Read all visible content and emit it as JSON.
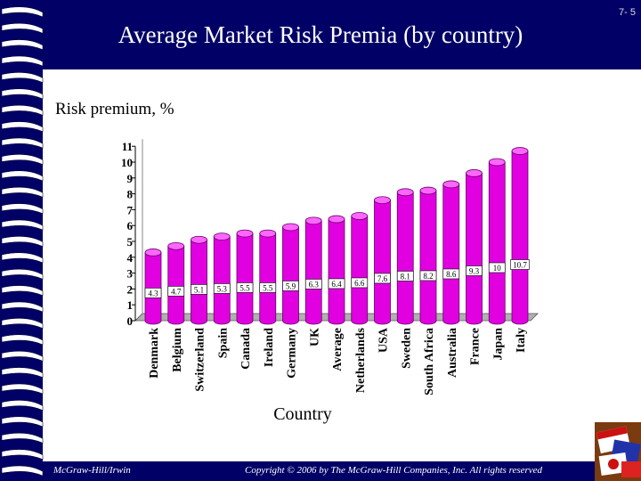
{
  "slide": {
    "title": "Average Market Risk Premia (by country)",
    "number": "7- 5",
    "footer_left": "McGraw-Hill/Irwin",
    "footer_right": "Copyright © 2006 by The McGraw-Hill Companies, Inc. All rights reserved",
    "colors": {
      "background": "#000066",
      "panel": "#ffffff",
      "bar": "#e000e0",
      "bar_top": "#ff66ff",
      "floor": "#b0b0b0"
    }
  },
  "chart_data": {
    "type": "bar",
    "ylabel": "Risk premium, %",
    "xlabel": "Country",
    "ylim": [
      0,
      11
    ],
    "yticks": [
      0,
      1,
      2,
      3,
      4,
      5,
      6,
      7,
      8,
      9,
      10,
      11
    ],
    "categories": [
      "Denmark",
      "Belgium",
      "Switzerland",
      "Spain",
      "Canada",
      "Ireland",
      "Germany",
      "UK",
      "Average",
      "Netherlands",
      "USA",
      "Sweden",
      "South Africa",
      "Australia",
      "France",
      "Japan",
      "Italy"
    ],
    "values": [
      4.3,
      4.7,
      5.1,
      5.3,
      5.5,
      5.5,
      5.9,
      6.3,
      6.4,
      6.6,
      7.6,
      8.1,
      8.2,
      8.6,
      9.3,
      10,
      10.7
    ],
    "data_labels": [
      "4.3",
      "4.7",
      "5.1",
      "5.3",
      "5.5",
      "5.5",
      "5.9",
      "6.3",
      "6.4",
      "6.6",
      "7.6",
      "8.1",
      "8.2",
      "8.6",
      "9.3",
      "10",
      "10.7"
    ],
    "grid": false,
    "legend": "none"
  }
}
